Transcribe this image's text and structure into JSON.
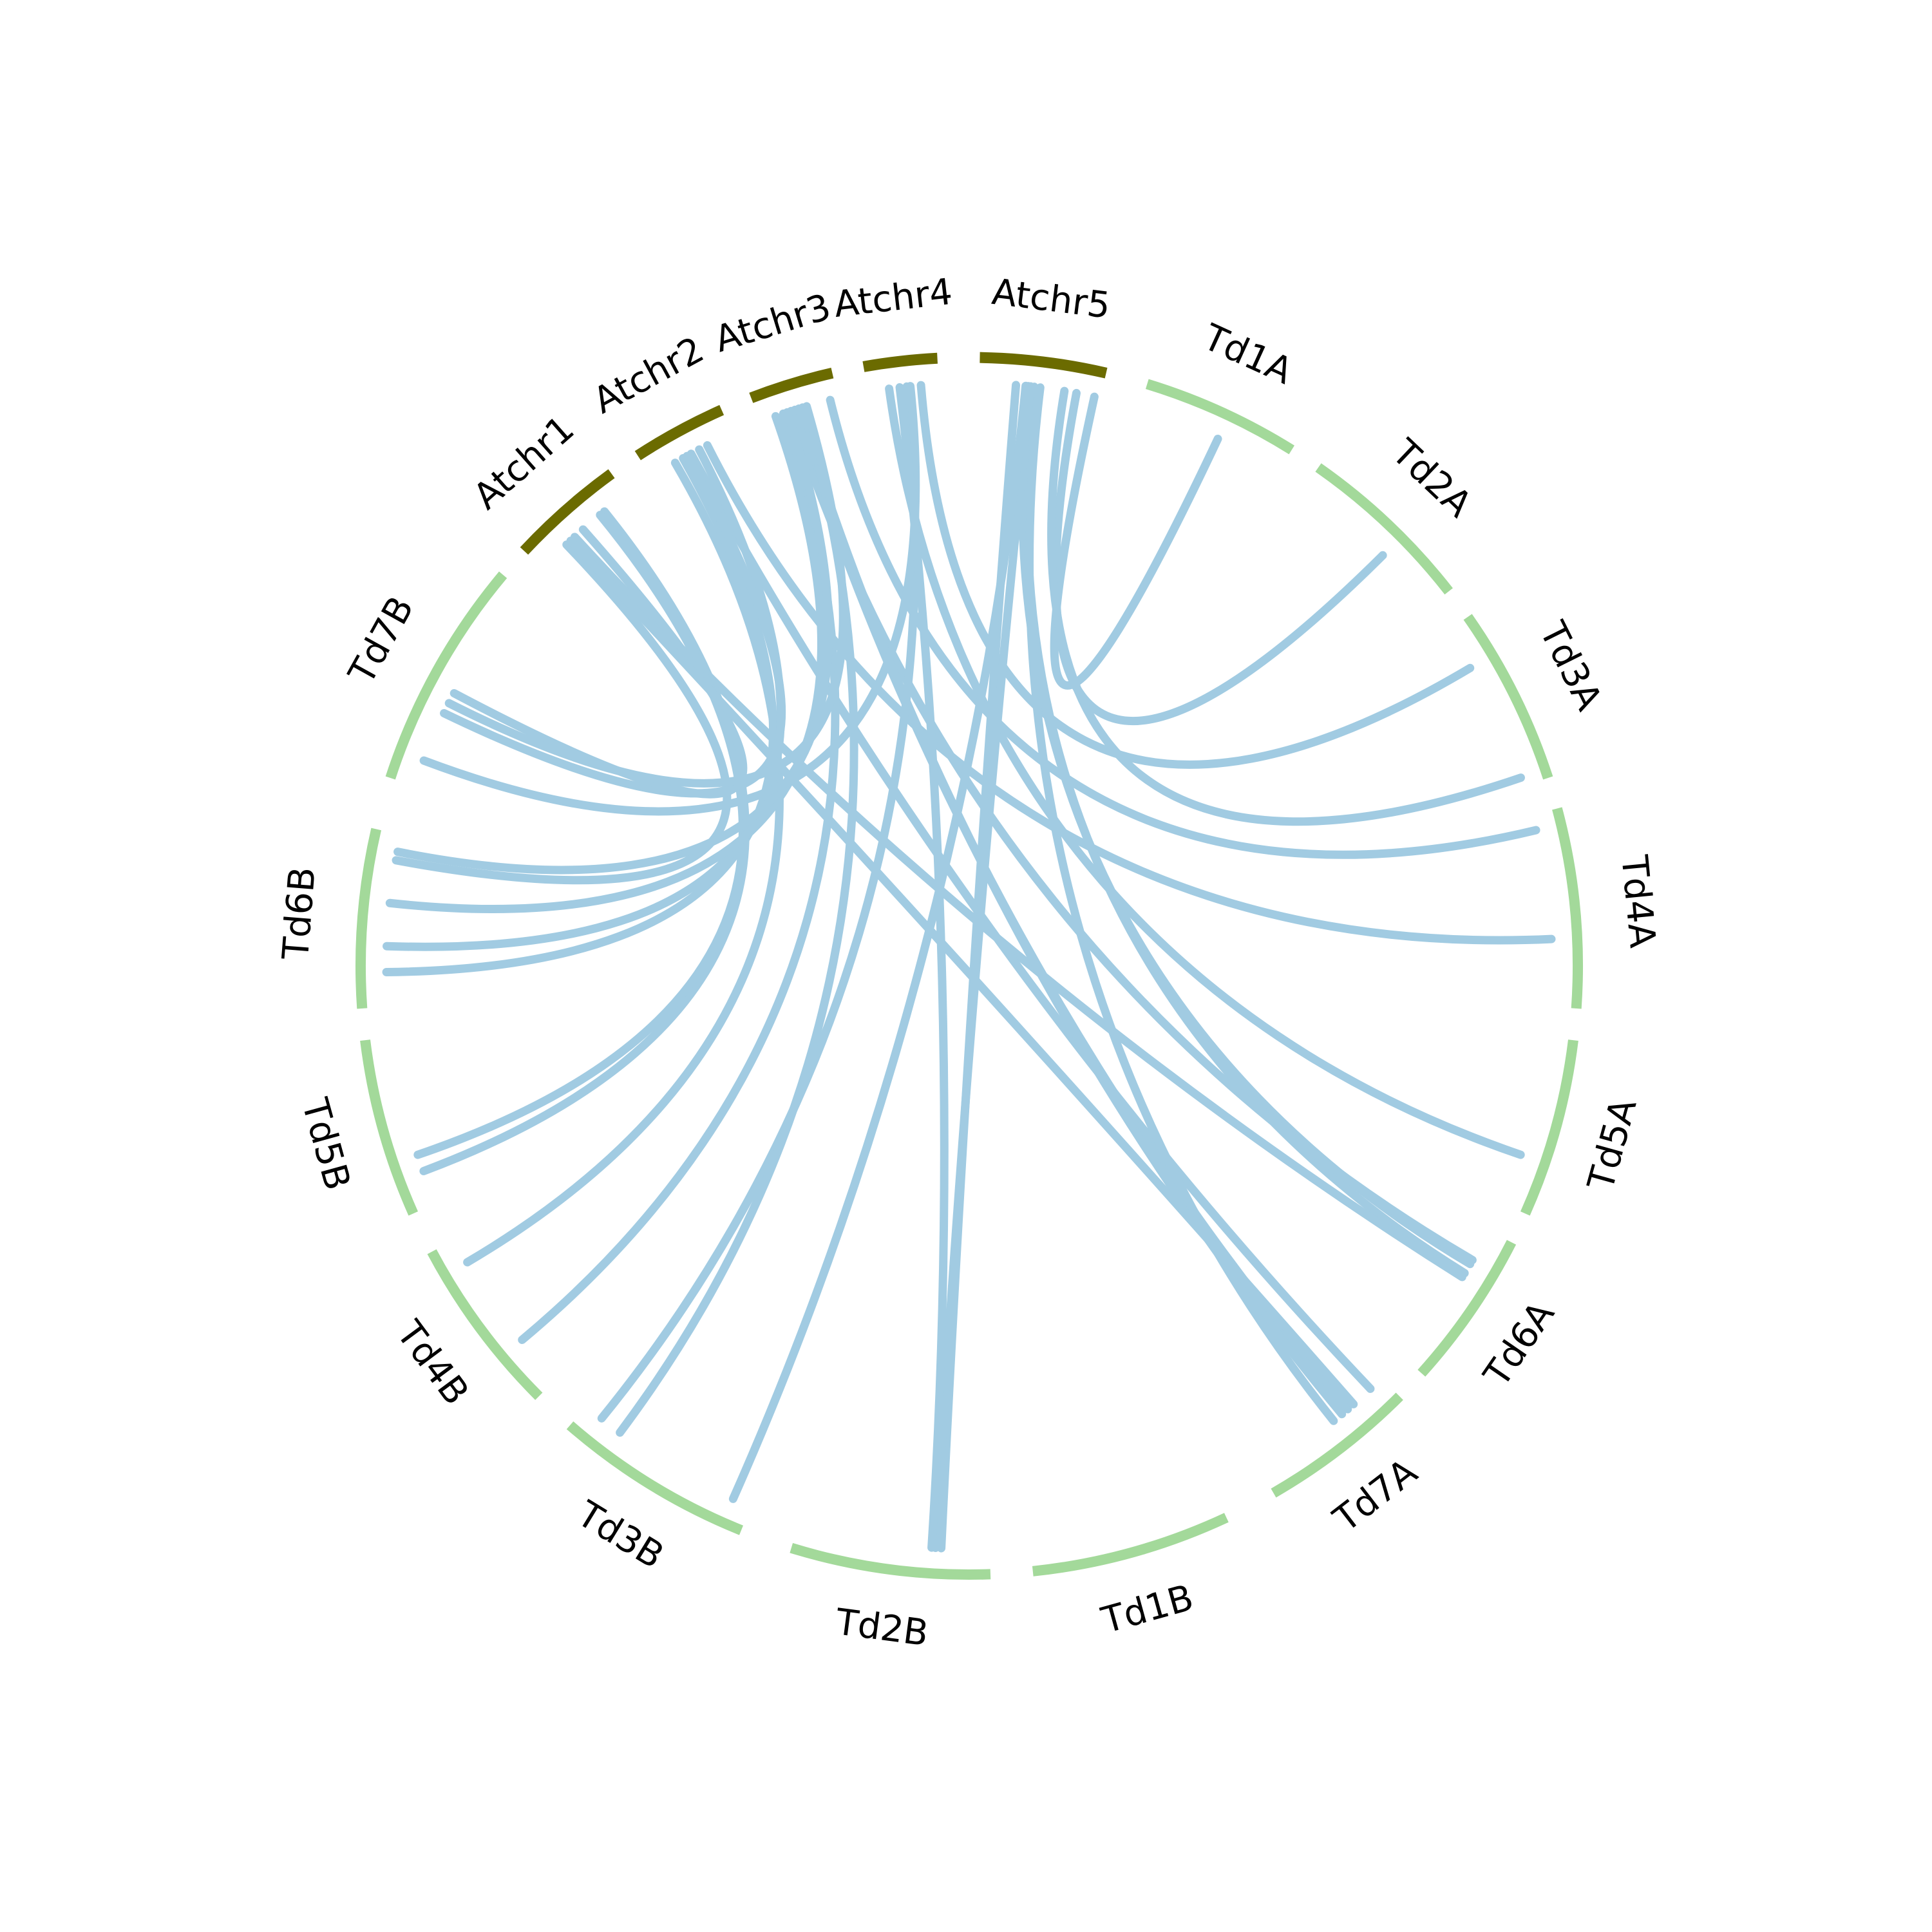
{
  "chart_data": {
    "type": "circos",
    "segments": [
      {
        "name": "Atchr1",
        "group": "arabidopsis"
      },
      {
        "name": "Atchr2",
        "group": "arabidopsis"
      },
      {
        "name": "Atchr3",
        "group": "arabidopsis"
      },
      {
        "name": "Atchr4",
        "group": "arabidopsis"
      },
      {
        "name": "Atchr5",
        "group": "arabidopsis"
      },
      {
        "name": "Td1A",
        "group": "wheat"
      },
      {
        "name": "Td2A",
        "group": "wheat"
      },
      {
        "name": "Td3A",
        "group": "wheat"
      },
      {
        "name": "Td4A",
        "group": "wheat"
      },
      {
        "name": "Td5A",
        "group": "wheat"
      },
      {
        "name": "Td6A",
        "group": "wheat"
      },
      {
        "name": "Td7A",
        "group": "wheat"
      },
      {
        "name": "Td1B",
        "group": "wheat"
      },
      {
        "name": "Td2B",
        "group": "wheat"
      },
      {
        "name": "Td3B",
        "group": "wheat"
      },
      {
        "name": "Td4B",
        "group": "wheat"
      },
      {
        "name": "Td5B",
        "group": "wheat"
      },
      {
        "name": "Td6B",
        "group": "wheat"
      },
      {
        "name": "Td7B",
        "group": "wheat"
      }
    ],
    "colors": {
      "arabidopsis": "#6b6b00",
      "wheat": "#a3d99a",
      "link": "#a1cbe2"
    },
    "links": [
      [
        "Atchr5",
        0.95,
        "Td1A",
        0.55
      ],
      [
        "Atchr5",
        0.8,
        "Td2A",
        0.6
      ],
      [
        "Atchr4",
        0.75,
        "Td3A",
        0.25
      ],
      [
        "Atchr5",
        0.7,
        "Td3A",
        0.95
      ],
      [
        "Atchr3",
        0.9,
        "Td4A",
        0.08
      ],
      [
        "Atchr2",
        0.7,
        "Td4A",
        0.65
      ],
      [
        "Atchr4",
        0.3,
        "Td5A",
        0.7
      ],
      [
        "Atchr5",
        0.4,
        "Td6A",
        0.25
      ],
      [
        "Atchr5",
        0.45,
        "Td6A",
        0.32
      ],
      [
        "Atchr1",
        0.4,
        "Td6A",
        0.35
      ],
      [
        "Atchr3",
        0.4,
        "Td6A",
        0.22
      ],
      [
        "Atchr2",
        0.5,
        "Td7A",
        0.1
      ],
      [
        "Atchr3",
        0.45,
        "Td7A",
        0.3
      ],
      [
        "Atchr3",
        0.5,
        "Td7A",
        0.35
      ],
      [
        "Atchr5",
        0.5,
        "Td7A",
        0.42
      ],
      [
        "Atchr5",
        0.3,
        "Td2B",
        0.25
      ],
      [
        "Atchr5",
        0.42,
        "Td2B",
        0.28
      ],
      [
        "Atchr5",
        0.38,
        "Td3B",
        0.1
      ],
      [
        "Atchr4",
        0.55,
        "Td3B",
        0.9
      ],
      [
        "Atchr3",
        0.55,
        "Td3B",
        0.78
      ],
      [
        "Atchr3",
        0.3,
        "Td4B",
        0.3
      ],
      [
        "Atchr2",
        0.3,
        "Td4B",
        0.85
      ],
      [
        "Atchr1",
        0.75,
        "Td5B",
        0.2
      ],
      [
        "Atchr1",
        0.7,
        "Td5B",
        0.3
      ],
      [
        "Atchr2",
        0.4,
        "Td6B",
        0.2
      ],
      [
        "Atchr2",
        0.6,
        "Td6B",
        0.35
      ],
      [
        "Atchr3",
        0.2,
        "Td6B",
        0.6
      ],
      [
        "Atchr1",
        0.3,
        "Td6B",
        0.85
      ],
      [
        "Atchr3",
        0.35,
        "Td6B",
        0.9
      ],
      [
        "Atchr4",
        0.6,
        "Td7B",
        0.12
      ],
      [
        "Atchr2",
        0.45,
        "Td7B",
        0.35
      ],
      [
        "Atchr1",
        0.5,
        "Td7B",
        0.45
      ],
      [
        "Atchr3",
        0.6,
        "Td7B",
        0.4
      ],
      [
        "Atchr4",
        0.45,
        "Td2B",
        0.3
      ],
      [
        "Atchr1",
        0.35,
        "Td7A",
        0.25
      ]
    ]
  }
}
